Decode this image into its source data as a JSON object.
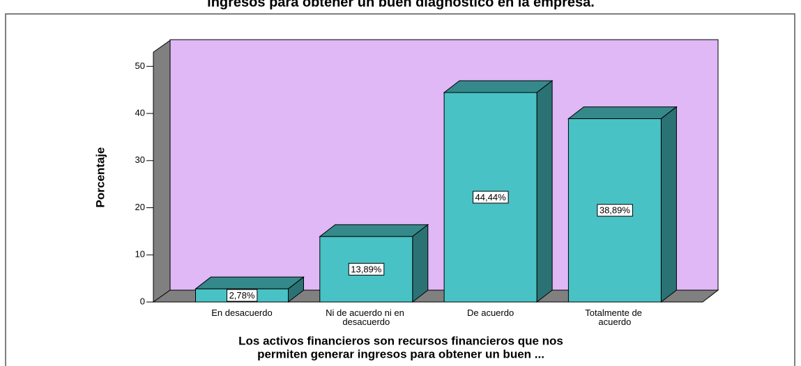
{
  "chart_data": {
    "type": "bar3d",
    "title": "ingresos para obtener un buen diagnóstico en la empresa.",
    "ylabel": "Porcentaje",
    "xlabel": [
      "Los activos financieros son recursos financieros que nos",
      "permiten generar ingresos para obtener un buen ..."
    ],
    "categories": [
      "En desacuerdo",
      "Ni de acuerdo ni en desacuerdo",
      "De acuerdo",
      "Totalmente de acuerdo"
    ],
    "values": [
      2.78,
      13.89,
      44.44,
      38.89
    ],
    "value_labels": [
      "2,78%",
      "13,89%",
      "44,44%",
      "38,89%"
    ],
    "color": "#48c2c5",
    "ylim": [
      0,
      53
    ],
    "yticks": [
      0,
      10,
      20,
      30,
      40,
      50
    ]
  }
}
